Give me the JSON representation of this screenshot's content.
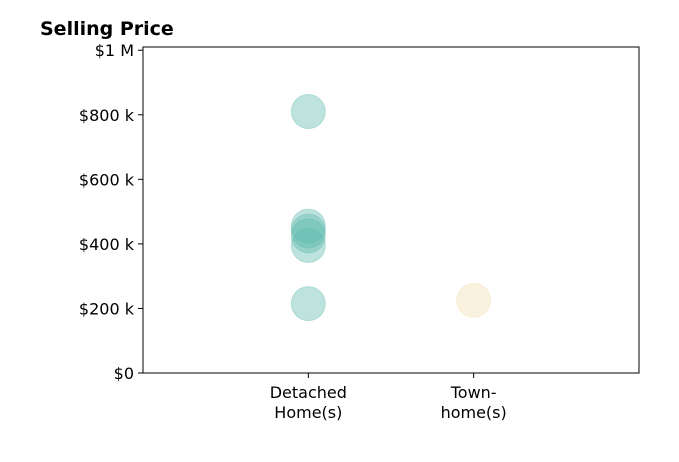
{
  "chart_data": {
    "type": "scatter",
    "title": "Selling Price",
    "xlabel": "",
    "ylabel": "",
    "categories": [
      "Detached\nHome(s)",
      "Town-\nhome(s)"
    ],
    "y_ticks": [
      {
        "value": 0,
        "label": "$0"
      },
      {
        "value": 200000,
        "label": "$200 k"
      },
      {
        "value": 400000,
        "label": "$400 k"
      },
      {
        "value": 600000,
        "label": "$600 k"
      },
      {
        "value": 800000,
        "label": "$800 k"
      },
      {
        "value": 1000000,
        "label": "$1 M"
      }
    ],
    "ylim": [
      0,
      1010000
    ],
    "xlim": [
      -1,
      2
    ],
    "grid": false,
    "series": [
      {
        "category": "Detached\nHome(s)",
        "color": "#5db8ac",
        "values": [
          810000,
          455000,
          440000,
          425000,
          395000,
          215000
        ]
      },
      {
        "category": "Town-\nhome(s)",
        "color": "#f2deb0",
        "values": [
          225000
        ]
      }
    ]
  }
}
